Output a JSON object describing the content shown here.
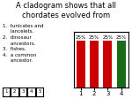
{
  "chart_data": {
    "type": "bar",
    "title": "A cladogram shows that all\nchordates evolved from",
    "categories": [
      "1",
      "2",
      "3",
      "4"
    ],
    "values": [
      25,
      25,
      25,
      25
    ],
    "value_labels": [
      "25%",
      "25%",
      "25%",
      "25%"
    ],
    "data_labels": true,
    "colors": [
      "#cc0000",
      "#cc0000",
      "#cc0000",
      "#1a6b1a"
    ],
    "ylim": [
      0,
      30
    ],
    "tick_labels": "x",
    "annotations": [
      "1.  tunicates and\n     lancelets.",
      "2.  dinosaur\n     ancestors.",
      "3.  fishes.",
      "4.  a common\n     ancestor.",
      "1",
      "2",
      "3",
      "4",
      "5"
    ]
  }
}
